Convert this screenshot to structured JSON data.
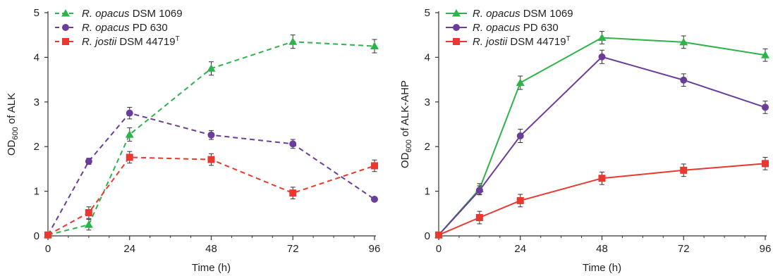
{
  "chart_data": [
    {
      "type": "line",
      "line_style": "dashed",
      "xlabel": "Time (h)",
      "ylabel_main": "OD",
      "ylabel_sub": "600",
      "ylabel_rest": " of ALK",
      "xlim": [
        0,
        96
      ],
      "ylim": [
        0,
        5
      ],
      "xticks": [
        0,
        24,
        48,
        72,
        96
      ],
      "yticks": [
        0,
        1,
        2,
        3,
        4,
        5
      ],
      "legend_position": "top-left",
      "series": [
        {
          "genus": "R. opacus",
          "strain": " DSM 1069",
          "sup": "",
          "color": "#2db34a",
          "marker": "triangle",
          "x": [
            0,
            12,
            24,
            48,
            72,
            96
          ],
          "y": [
            0.02,
            0.25,
            2.27,
            3.75,
            4.35,
            4.25
          ],
          "err": [
            0.02,
            0.12,
            0.15,
            0.15,
            0.15,
            0.15
          ]
        },
        {
          "genus": "R. opacus",
          "strain": " PD 630",
          "sup": "",
          "color": "#6a3d9a",
          "marker": "circle",
          "x": [
            0,
            12,
            24,
            48,
            72,
            96
          ],
          "y": [
            0.02,
            1.67,
            2.75,
            2.26,
            2.06,
            0.82
          ],
          "err": [
            0.02,
            0.07,
            0.13,
            0.1,
            0.1,
            0.03
          ]
        },
        {
          "genus": "R. jostii",
          "strain": " DSM 44719",
          "sup": "T",
          "color": "#e8382f",
          "marker": "square",
          "x": [
            0,
            12,
            24,
            48,
            72,
            96
          ],
          "y": [
            0.02,
            0.52,
            1.76,
            1.71,
            0.96,
            1.57
          ],
          "err": [
            0.02,
            0.13,
            0.13,
            0.13,
            0.13,
            0.13
          ]
        }
      ]
    },
    {
      "type": "line",
      "line_style": "solid",
      "xlabel": "Time (h)",
      "ylabel_main": "OD",
      "ylabel_sub": "600",
      "ylabel_rest": " of ALK-AHP",
      "xlim": [
        0,
        96
      ],
      "ylim": [
        0,
        5
      ],
      "xticks": [
        0,
        24,
        48,
        72,
        96
      ],
      "yticks": [
        0,
        1,
        2,
        3,
        4,
        5
      ],
      "legend_position": "top-left",
      "series": [
        {
          "genus": "R. opacus",
          "strain": " DSM 1069",
          "sup": "",
          "color": "#2db34a",
          "marker": "triangle",
          "x": [
            0,
            12,
            24,
            48,
            72,
            96
          ],
          "y": [
            0.02,
            1.05,
            3.43,
            4.44,
            4.34,
            4.05
          ],
          "err": [
            0.02,
            0.12,
            0.15,
            0.14,
            0.14,
            0.14
          ]
        },
        {
          "genus": "R. opacus",
          "strain": " PD 630",
          "sup": "",
          "color": "#6a3d9a",
          "marker": "circle",
          "x": [
            0,
            12,
            24,
            48,
            72,
            96
          ],
          "y": [
            0.02,
            1.02,
            2.24,
            4.01,
            3.49,
            2.88
          ],
          "err": [
            0.02,
            0.1,
            0.15,
            0.15,
            0.14,
            0.14
          ]
        },
        {
          "genus": "R. jostii",
          "strain": " DSM 44719",
          "sup": "T",
          "color": "#e8382f",
          "marker": "square",
          "x": [
            0,
            12,
            24,
            48,
            72,
            96
          ],
          "y": [
            0.02,
            0.41,
            0.79,
            1.29,
            1.47,
            1.62
          ],
          "err": [
            0.02,
            0.14,
            0.14,
            0.14,
            0.14,
            0.14
          ]
        }
      ]
    }
  ]
}
